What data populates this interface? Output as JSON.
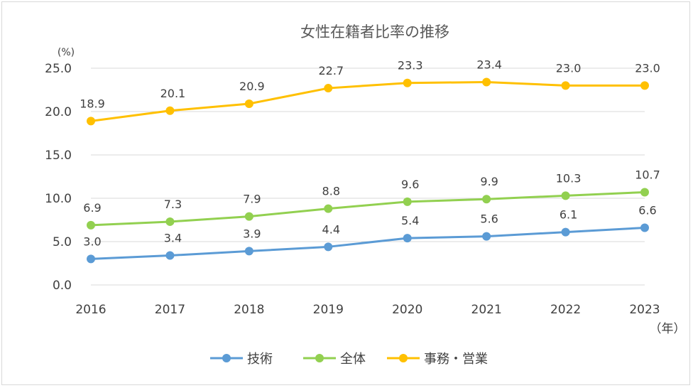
{
  "chart_data": {
    "type": "line",
    "title": "女性在籍者比率の推移",
    "y_unit": "(%)",
    "x_unit": "（年）",
    "categories": [
      "2016",
      "2017",
      "2018",
      "2019",
      "2020",
      "2021",
      "2022",
      "2023"
    ],
    "ylim": [
      0,
      25
    ],
    "yticks": [
      "0.0",
      "5.0",
      "10.0",
      "15.0",
      "20.0",
      "25.0"
    ],
    "grid": "horizontal",
    "legend_position": "bottom",
    "series": [
      {
        "name": "技術",
        "color": "#5b9bd5",
        "values": [
          3.0,
          3.4,
          3.9,
          4.4,
          5.4,
          5.6,
          6.1,
          6.6
        ],
        "labels": [
          "3.0",
          "3.4",
          "3.9",
          "4.4",
          "5.4",
          "5.6",
          "6.1",
          "6.6"
        ]
      },
      {
        "name": "全体",
        "color": "#92d050",
        "values": [
          6.9,
          7.3,
          7.9,
          8.8,
          9.6,
          9.9,
          10.3,
          10.7
        ],
        "labels": [
          "6.9",
          "7.3",
          "7.9",
          "8.8",
          "9.6",
          "9.9",
          "10.3",
          "10.7"
        ]
      },
      {
        "name": "事務・営業",
        "color": "#ffc000",
        "values": [
          18.9,
          20.1,
          20.9,
          22.7,
          23.3,
          23.4,
          23.0,
          23.0
        ],
        "labels": [
          "18.9",
          "20.1",
          "20.9",
          "22.7",
          "23.3",
          "23.4",
          "23.0",
          "23.0"
        ]
      }
    ]
  }
}
